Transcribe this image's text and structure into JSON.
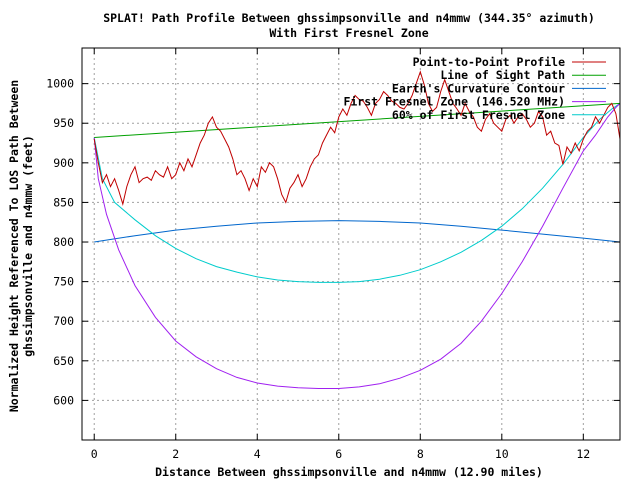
{
  "chart_data": {
    "type": "line",
    "title": "SPLAT! Path Profile Between ghssimpsonville and n4mmw (344.35° azimuth)",
    "subtitle": "With First Fresnel Zone",
    "xlabel": "Distance Between ghssimpsonville and n4mmw (12.90 miles)",
    "ylabel_lines": [
      "Normalized Height Referenced To LOS Path Between",
      "ghssimpsonville and n4mmw (feet)"
    ],
    "xlim": [
      -0.3,
      12.9
    ],
    "ylim": [
      550,
      1045
    ],
    "x_ticks": [
      0,
      2,
      4,
      6,
      8,
      10,
      12
    ],
    "y_ticks": [
      600,
      650,
      700,
      750,
      800,
      850,
      900,
      950,
      1000
    ],
    "grid": true,
    "legend_position": "top-right",
    "colors": {
      "profile": "#c00000",
      "los": "#00a000",
      "curvature": "#0066cc",
      "fresnel": "#a020f0",
      "fresnel60": "#00cccc"
    },
    "series": [
      {
        "name": "Point-to-Point Profile",
        "color": "#c00000",
        "x": [
          0,
          0.1,
          0.2,
          0.3,
          0.4,
          0.5,
          0.6,
          0.7,
          0.8,
          0.9,
          1.0,
          1.1,
          1.2,
          1.3,
          1.4,
          1.5,
          1.6,
          1.7,
          1.8,
          1.9,
          2.0,
          2.1,
          2.2,
          2.3,
          2.4,
          2.5,
          2.6,
          2.7,
          2.8,
          2.9,
          3.0,
          3.1,
          3.2,
          3.3,
          3.4,
          3.5,
          3.6,
          3.7,
          3.8,
          3.9,
          4.0,
          4.1,
          4.2,
          4.3,
          4.4,
          4.5,
          4.6,
          4.7,
          4.8,
          4.9,
          5.0,
          5.1,
          5.2,
          5.3,
          5.4,
          5.5,
          5.6,
          5.7,
          5.8,
          5.9,
          6.0,
          6.1,
          6.2,
          6.3,
          6.4,
          6.5,
          6.6,
          6.7,
          6.8,
          6.9,
          7.0,
          7.1,
          7.2,
          7.3,
          7.4,
          7.5,
          7.6,
          7.7,
          7.8,
          7.9,
          8.0,
          8.1,
          8.2,
          8.3,
          8.4,
          8.5,
          8.6,
          8.7,
          8.8,
          8.9,
          9.0,
          9.1,
          9.2,
          9.3,
          9.4,
          9.5,
          9.6,
          9.7,
          9.8,
          9.9,
          10.0,
          10.1,
          10.2,
          10.3,
          10.4,
          10.5,
          10.6,
          10.7,
          10.8,
          10.9,
          11.0,
          11.1,
          11.2,
          11.3,
          11.4,
          11.5,
          11.6,
          11.7,
          11.8,
          11.9,
          12.0,
          12.1,
          12.2,
          12.3,
          12.4,
          12.5,
          12.6,
          12.7,
          12.8,
          12.9
        ],
        "values": [
          930,
          900,
          875,
          885,
          870,
          880,
          865,
          848,
          870,
          885,
          895,
          875,
          880,
          882,
          878,
          890,
          885,
          882,
          895,
          880,
          885,
          900,
          890,
          905,
          895,
          910,
          925,
          935,
          950,
          958,
          945,
          940,
          930,
          920,
          905,
          885,
          890,
          880,
          865,
          880,
          870,
          895,
          888,
          900,
          895,
          880,
          860,
          850,
          868,
          875,
          885,
          870,
          880,
          895,
          905,
          910,
          925,
          935,
          945,
          938,
          958,
          968,
          960,
          975,
          985,
          980,
          978,
          970,
          960,
          975,
          980,
          990,
          985,
          978,
          975,
          970,
          968,
          975,
          985,
          1000,
          1015,
          998,
          975,
          965,
          970,
          990,
          1005,
          990,
          975,
          968,
          960,
          975,
          965,
          958,
          945,
          940,
          955,
          962,
          950,
          945,
          940,
          955,
          960,
          950,
          958,
          962,
          955,
          945,
          950,
          965,
          958,
          935,
          940,
          925,
          922,
          898,
          920,
          912,
          925,
          915,
          930,
          940,
          945,
          958,
          950,
          960,
          970,
          975,
          962,
          930
        ]
      },
      {
        "name": "Line of Sight Path",
        "color": "#00a000",
        "x": [
          0,
          12.9
        ],
        "values": [
          932,
          975
        ]
      },
      {
        "name": "Earth's Curvature Contour",
        "color": "#0066cc",
        "x": [
          0,
          1,
          2,
          3,
          4,
          5,
          6,
          7,
          8,
          9,
          10,
          11,
          12,
          12.9
        ],
        "values": [
          800,
          808,
          815,
          820,
          824,
          826,
          827,
          826,
          824,
          820,
          815,
          810,
          805,
          800
        ]
      },
      {
        "name": "First Fresnel Zone (146.520 MHz)",
        "color": "#a020f0",
        "x": [
          0,
          0.1,
          0.3,
          0.6,
          1,
          1.5,
          2,
          2.5,
          3,
          3.5,
          4,
          4.5,
          5,
          5.5,
          6,
          6.5,
          7,
          7.5,
          8,
          8.5,
          9,
          9.5,
          10,
          10.5,
          11,
          11.5,
          12,
          12.3,
          12.6,
          12.8,
          12.9
        ],
        "values": [
          932,
          880,
          835,
          790,
          745,
          705,
          675,
          655,
          640,
          629,
          622,
          618,
          616,
          615,
          615,
          617,
          621,
          628,
          638,
          652,
          672,
          700,
          735,
          775,
          820,
          868,
          915,
          935,
          958,
          970,
          975
        ]
      },
      {
        "name": "60% of First Fresnel Zone",
        "color": "#00cccc",
        "x": [
          0,
          0.2,
          0.5,
          1,
          1.5,
          2,
          2.5,
          3,
          3.5,
          4,
          4.5,
          5,
          5.5,
          6,
          6.5,
          7,
          7.5,
          8,
          8.5,
          9,
          9.5,
          10,
          10.5,
          11,
          11.5,
          12,
          12.4,
          12.7,
          12.9
        ],
        "values": [
          932,
          880,
          850,
          828,
          808,
          792,
          779,
          769,
          762,
          756,
          752,
          750,
          749,
          749,
          750,
          753,
          758,
          765,
          775,
          787,
          802,
          820,
          842,
          868,
          898,
          932,
          955,
          968,
          975
        ]
      }
    ]
  }
}
